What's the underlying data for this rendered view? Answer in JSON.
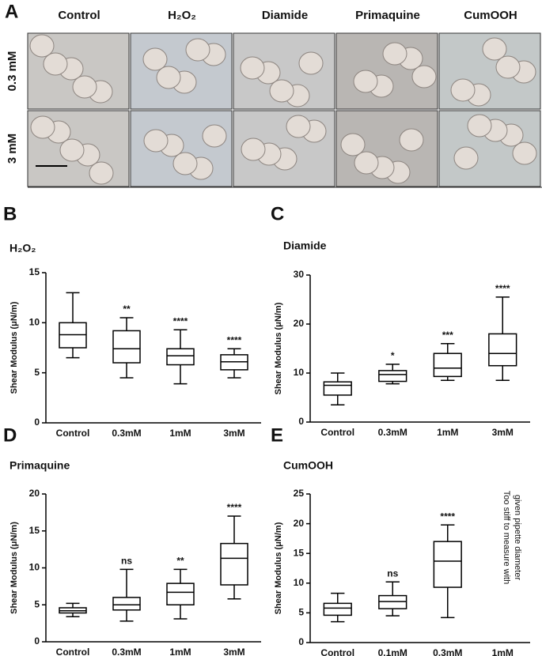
{
  "micrographs": {
    "label": "A",
    "columns": [
      "Control",
      "H₂O₂",
      "Diamide",
      "Primaquine",
      "CumOOH"
    ],
    "rows": [
      "0.3 mM",
      "3 mM"
    ]
  },
  "chart_data": [
    {
      "type": "box",
      "label": "B",
      "title": "H₂O₂",
      "ylabel": "Shear Modulus (μN/m)",
      "categories": [
        "Control",
        "0.3mM",
        "1mM",
        "3mM"
      ],
      "boxes": [
        {
          "min": 6.5,
          "q1": 7.5,
          "median": 8.8,
          "q3": 10,
          "max": 13
        },
        {
          "min": 4.5,
          "q1": 6,
          "median": 7.4,
          "q3": 9.2,
          "max": 10.5
        },
        {
          "min": 3.9,
          "q1": 5.8,
          "median": 6.7,
          "q3": 7.4,
          "max": 9.3
        },
        {
          "min": 4.5,
          "q1": 5.3,
          "median": 6.1,
          "q3": 6.8,
          "max": 7.4
        }
      ],
      "annotations": [
        null,
        "**",
        "****",
        "****"
      ],
      "ylim": [
        0,
        15
      ],
      "yticks": [
        0,
        5,
        10,
        15
      ]
    },
    {
      "type": "box",
      "label": "C",
      "title": "Diamide",
      "ylabel": "Shear Modulus (μN/m)",
      "categories": [
        "Control",
        "0.3mM",
        "1mM",
        "3mM"
      ],
      "boxes": [
        {
          "min": 3.5,
          "q1": 5.5,
          "median": 7.5,
          "q3": 8.2,
          "max": 10
        },
        {
          "min": 7.8,
          "q1": 8.3,
          "median": 9.7,
          "q3": 10.5,
          "max": 11.8
        },
        {
          "min": 8.5,
          "q1": 9.3,
          "median": 11,
          "q3": 14,
          "max": 16
        },
        {
          "min": 8.5,
          "q1": 11.5,
          "median": 14,
          "q3": 18,
          "max": 25.5
        }
      ],
      "annotations": [
        null,
        "*",
        "***",
        "****"
      ],
      "ylim": [
        0,
        30
      ],
      "yticks": [
        0,
        10,
        20,
        30
      ]
    },
    {
      "type": "box",
      "label": "D",
      "title": "Primaquine",
      "ylabel": "Shear Modulus (μN/m)",
      "categories": [
        "Control",
        "0.3mM",
        "1mM",
        "3mM"
      ],
      "boxes": [
        {
          "min": 3.4,
          "q1": 3.9,
          "median": 4.2,
          "q3": 4.6,
          "max": 5.2
        },
        {
          "min": 2.8,
          "q1": 4.3,
          "median": 5,
          "q3": 6,
          "max": 9.8
        },
        {
          "min": 3.1,
          "q1": 5,
          "median": 6.7,
          "q3": 7.9,
          "max": 9.8
        },
        {
          "min": 5.8,
          "q1": 7.7,
          "median": 11.3,
          "q3": 13.3,
          "max": 17
        }
      ],
      "annotations": [
        null,
        "ns",
        "**",
        "****"
      ],
      "ylim": [
        0,
        20
      ],
      "yticks": [
        0,
        5,
        10,
        15,
        20
      ]
    },
    {
      "type": "box",
      "label": "E",
      "title": "CumOOH",
      "ylabel": "Shear Modulus (μN/m)",
      "categories": [
        "Control",
        "0.1mM",
        "0.3mM",
        "1mM"
      ],
      "boxes": [
        {
          "min": 3.5,
          "q1": 4.6,
          "median": 5.8,
          "q3": 6.6,
          "max": 8.3
        },
        {
          "min": 4.5,
          "q1": 5.7,
          "median": 6.9,
          "q3": 7.9,
          "max": 10.2
        },
        {
          "min": 4.2,
          "q1": 9.3,
          "median": 13.7,
          "q3": 17,
          "max": 19.8
        },
        null
      ],
      "annotations": [
        null,
        "ns",
        "****",
        null
      ],
      "note_lines": [
        "Too stiff to measure with",
        "given pipette diameter"
      ],
      "ylim": [
        0,
        25
      ],
      "yticks": [
        0,
        5,
        10,
        15,
        20,
        25
      ]
    }
  ]
}
